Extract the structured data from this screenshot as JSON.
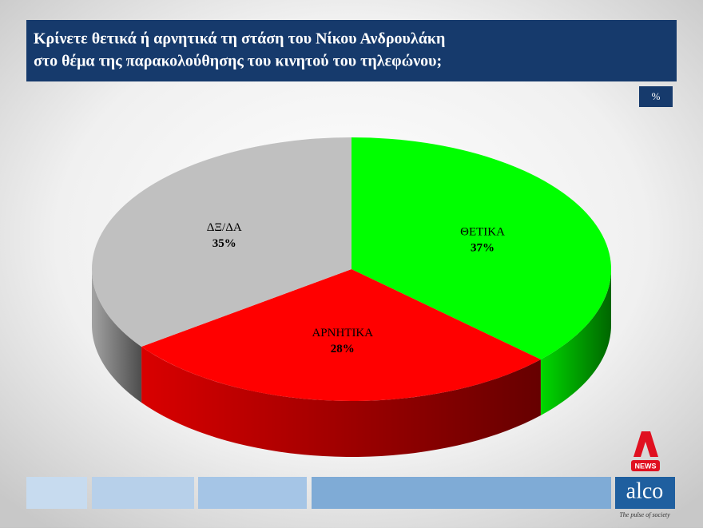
{
  "chart_data": {
    "type": "pie",
    "title": [
      "Κρίνετε θετικά ή αρνητικά τη στάση του Νίκου Ανδρουλάκη",
      "στο θέμα της παρακολούθησης του κινητού του τηλεφώνου;"
    ],
    "unit": "%",
    "categories": [
      "ΘΕΤΙΚΑ",
      "ΑΡΝΗΤΙΚΑ",
      "ΔΞ/ΔΑ"
    ],
    "values": [
      37,
      28,
      35
    ],
    "value_labels": [
      "37%",
      "28%",
      "35%"
    ],
    "colors": [
      "#00ff00",
      "#ff0000",
      "#c0c0c0"
    ]
  },
  "branding": {
    "channel": "NEWS",
    "company": "alco",
    "tagline": "The pulse of society"
  }
}
